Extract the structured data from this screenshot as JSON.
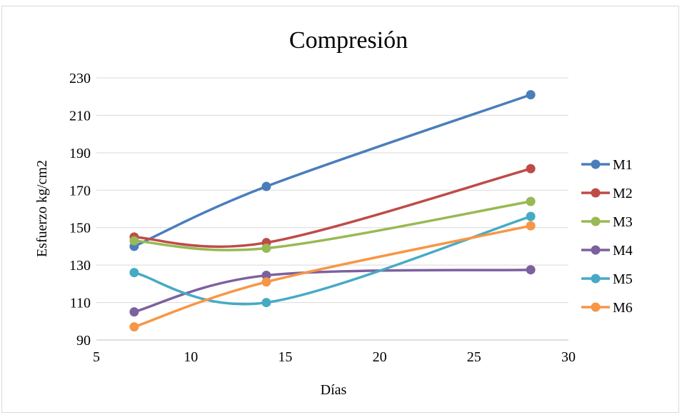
{
  "chart_data": {
    "type": "line",
    "title": "Compresión",
    "xlabel": "Días",
    "ylabel": "Esfuerzo kg/cm2",
    "xlim": [
      5,
      30
    ],
    "ylim": [
      90,
      230
    ],
    "x_ticks": [
      5,
      10,
      15,
      20,
      25,
      30
    ],
    "y_ticks": [
      90,
      110,
      130,
      150,
      170,
      190,
      210,
      230
    ],
    "grid": "horizontal",
    "legend_position": "right",
    "smooth": true,
    "series": [
      {
        "name": "M1",
        "color": "#4a7ebb",
        "x": [
          7,
          14,
          28
        ],
        "y": [
          140,
          172,
          221
        ]
      },
      {
        "name": "M2",
        "color": "#be4b48",
        "x": [
          7,
          14,
          28
        ],
        "y": [
          145,
          142,
          181.5
        ]
      },
      {
        "name": "M3",
        "color": "#98b954",
        "x": [
          7,
          14,
          28
        ],
        "y": [
          143,
          139,
          164
        ]
      },
      {
        "name": "M4",
        "color": "#7d60a0",
        "x": [
          7,
          14,
          28
        ],
        "y": [
          105,
          124.5,
          127.5
        ]
      },
      {
        "name": "M5",
        "color": "#46aac5",
        "x": [
          7,
          14,
          28
        ],
        "y": [
          126,
          110,
          156
        ]
      },
      {
        "name": "M6",
        "color": "#f79646",
        "x": [
          7,
          14,
          28
        ],
        "y": [
          97,
          121,
          151
        ]
      }
    ]
  }
}
